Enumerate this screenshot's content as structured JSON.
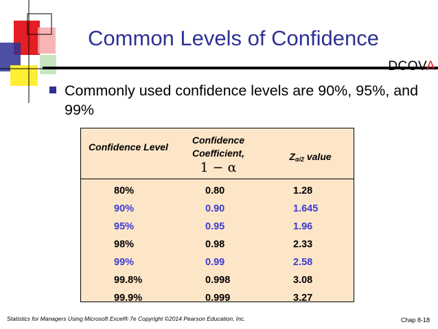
{
  "slide": {
    "title": "Common Levels of Confidence",
    "dcova_prefix": "DCOV",
    "dcova_highlight": "A",
    "bullet_text": "Commonly used confidence levels are 90%, 95%, and 99%"
  },
  "table": {
    "headers": {
      "level": "Confidence Level",
      "coef_line1": "Confidence",
      "coef_line2": "Coefficient,",
      "coef_symbol": "1 − α",
      "z_symbol": "Z",
      "z_subscript": "α/2",
      "z_suffix": " value"
    },
    "rows": [
      {
        "level": "80%",
        "coef": "0.80",
        "z": "1.28",
        "highlight": false
      },
      {
        "level": "90%",
        "coef": "0.90",
        "z": "1.645",
        "highlight": true
      },
      {
        "level": "95%",
        "coef": "0.95",
        "z": "1.96",
        "highlight": true
      },
      {
        "level": "98%",
        "coef": "0.98",
        "z": "2.33",
        "highlight": false
      },
      {
        "level": "99%",
        "coef": "0.99",
        "z": "2.58",
        "highlight": true
      },
      {
        "level": "99.8%",
        "coef": "0.998",
        "z": "3.08",
        "highlight": false
      },
      {
        "level": "99.9%",
        "coef": "0.999",
        "z": "3.27",
        "highlight": false
      }
    ]
  },
  "footer": {
    "citation": "Statistics for Managers Using Microsoft Excel® 7e Copyright ©2014 Pearson Education, Inc.",
    "chapter": "Chap 8-18"
  },
  "colors": {
    "title": "#2e3192",
    "highlight_row": "#3b3bd0",
    "table_bg": "#fde6c8",
    "dcova_accent": "#e31e24"
  }
}
